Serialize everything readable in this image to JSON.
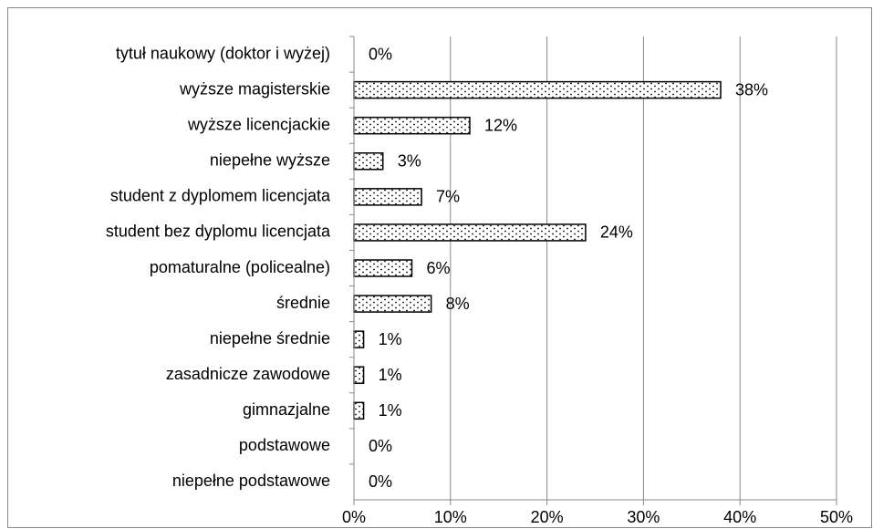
{
  "chart_data": {
    "type": "hbar",
    "categories": [
      "tytuł naukowy (doktor i wyżej)",
      "wyższe magisterskie",
      "wyższe licencjackie",
      "niepełne wyższe",
      "student z dyplomem licencjata",
      "student bez dyplomu licencjata",
      "pomaturalne (policealne)",
      "średnie",
      "niepełne średnie",
      "zasadnicze zawodowe",
      "gimnazjalne",
      "podstawowe",
      "niepełne podstawowe"
    ],
    "values": [
      0,
      38,
      12,
      3,
      7,
      24,
      6,
      8,
      1,
      1,
      1,
      0,
      0
    ],
    "value_labels": [
      "0%",
      "38%",
      "12%",
      "3%",
      "7%",
      "24%",
      "6%",
      "8%",
      "1%",
      "1%",
      "1%",
      "0%",
      "0%"
    ],
    "color": "#000000",
    "xlim": [
      0,
      50
    ],
    "xticks": [
      {
        "value": 0,
        "label": "0%"
      },
      {
        "value": 10,
        "label": "10%"
      },
      {
        "value": 20,
        "label": "20%"
      },
      {
        "value": 30,
        "label": "30%"
      },
      {
        "value": 40,
        "label": "40%"
      },
      {
        "value": 50,
        "label": "50%"
      }
    ],
    "grid": true
  }
}
